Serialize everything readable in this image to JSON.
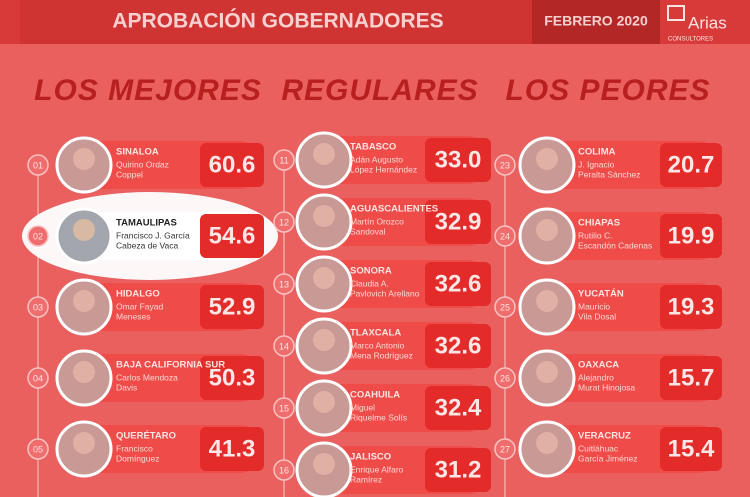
{
  "header": {
    "title": "APROBACIÓN GOBERNADORES",
    "date": "FEBRERO 2020",
    "brand": "Arias",
    "brand_sub": "CONSULTORES"
  },
  "columns": [
    {
      "title": "LOS MEJORES",
      "items": [
        {
          "rank": "01",
          "state": "SINALOA",
          "name": [
            "Quirino Ordaz",
            "Coppel"
          ],
          "score": "60.6"
        },
        {
          "rank": "02",
          "state": "TAMAULIPAS",
          "name": [
            "Francisco J. García",
            "Cabeza de Vaca"
          ],
          "score": "54.6"
        },
        {
          "rank": "03",
          "state": "HIDALGO",
          "name": [
            "Omar Fayad",
            "Meneses"
          ],
          "score": "52.9"
        },
        {
          "rank": "04",
          "state": "BAJA CALIFORNIA SUR",
          "name": [
            "Carlos Mendoza",
            "Davis"
          ],
          "score": "50.3"
        },
        {
          "rank": "05",
          "state": "QUERÉTARO",
          "name": [
            "Francisco",
            "Domínguez"
          ],
          "score": "41.3"
        }
      ]
    },
    {
      "title": "REGULARES",
      "items": [
        {
          "rank": "11",
          "state": "TABASCO",
          "name": [
            "Adán Augusto",
            "López Hernández"
          ],
          "score": "33.0"
        },
        {
          "rank": "12",
          "state": "AGUASCALIENTES",
          "name": [
            "Martín Orozco",
            "Sandoval"
          ],
          "score": "32.9"
        },
        {
          "rank": "13",
          "state": "SONORA",
          "name": [
            "Claudia A.",
            "Pavlovich Arellano"
          ],
          "score": "32.6"
        },
        {
          "rank": "14",
          "state": "TLAXCALA",
          "name": [
            "Marco Antonio",
            "Mena Rodríguez"
          ],
          "score": "32.6"
        },
        {
          "rank": "15",
          "state": "COAHUILA",
          "name": [
            "Miguel",
            "Riquelme Solís"
          ],
          "score": "32.4"
        },
        {
          "rank": "16",
          "state": "JALISCO",
          "name": [
            "Enrique Alfaro",
            "Ramírez"
          ],
          "score": "31.2"
        }
      ]
    },
    {
      "title": "LOS PEORES",
      "items": [
        {
          "rank": "23",
          "state": "COLIMA",
          "name": [
            "J. Ignacio",
            "Peralta Sánchez"
          ],
          "score": "20.7"
        },
        {
          "rank": "24",
          "state": "CHIAPAS",
          "name": [
            "Rutilio C.",
            "Escandón Cadenas"
          ],
          "score": "19.9"
        },
        {
          "rank": "25",
          "state": "YUCATÁN",
          "name": [
            "Mauricio",
            "Vila Dosal"
          ],
          "score": "19.3"
        },
        {
          "rank": "26",
          "state": "OAXACA",
          "name": [
            "Alejandro",
            "Murat Hinojosa"
          ],
          "score": "15.7"
        },
        {
          "rank": "27",
          "state": "VERACRUZ",
          "name": [
            "Cuitláhuac",
            "García Jiménez"
          ],
          "score": "15.4"
        }
      ]
    }
  ]
}
